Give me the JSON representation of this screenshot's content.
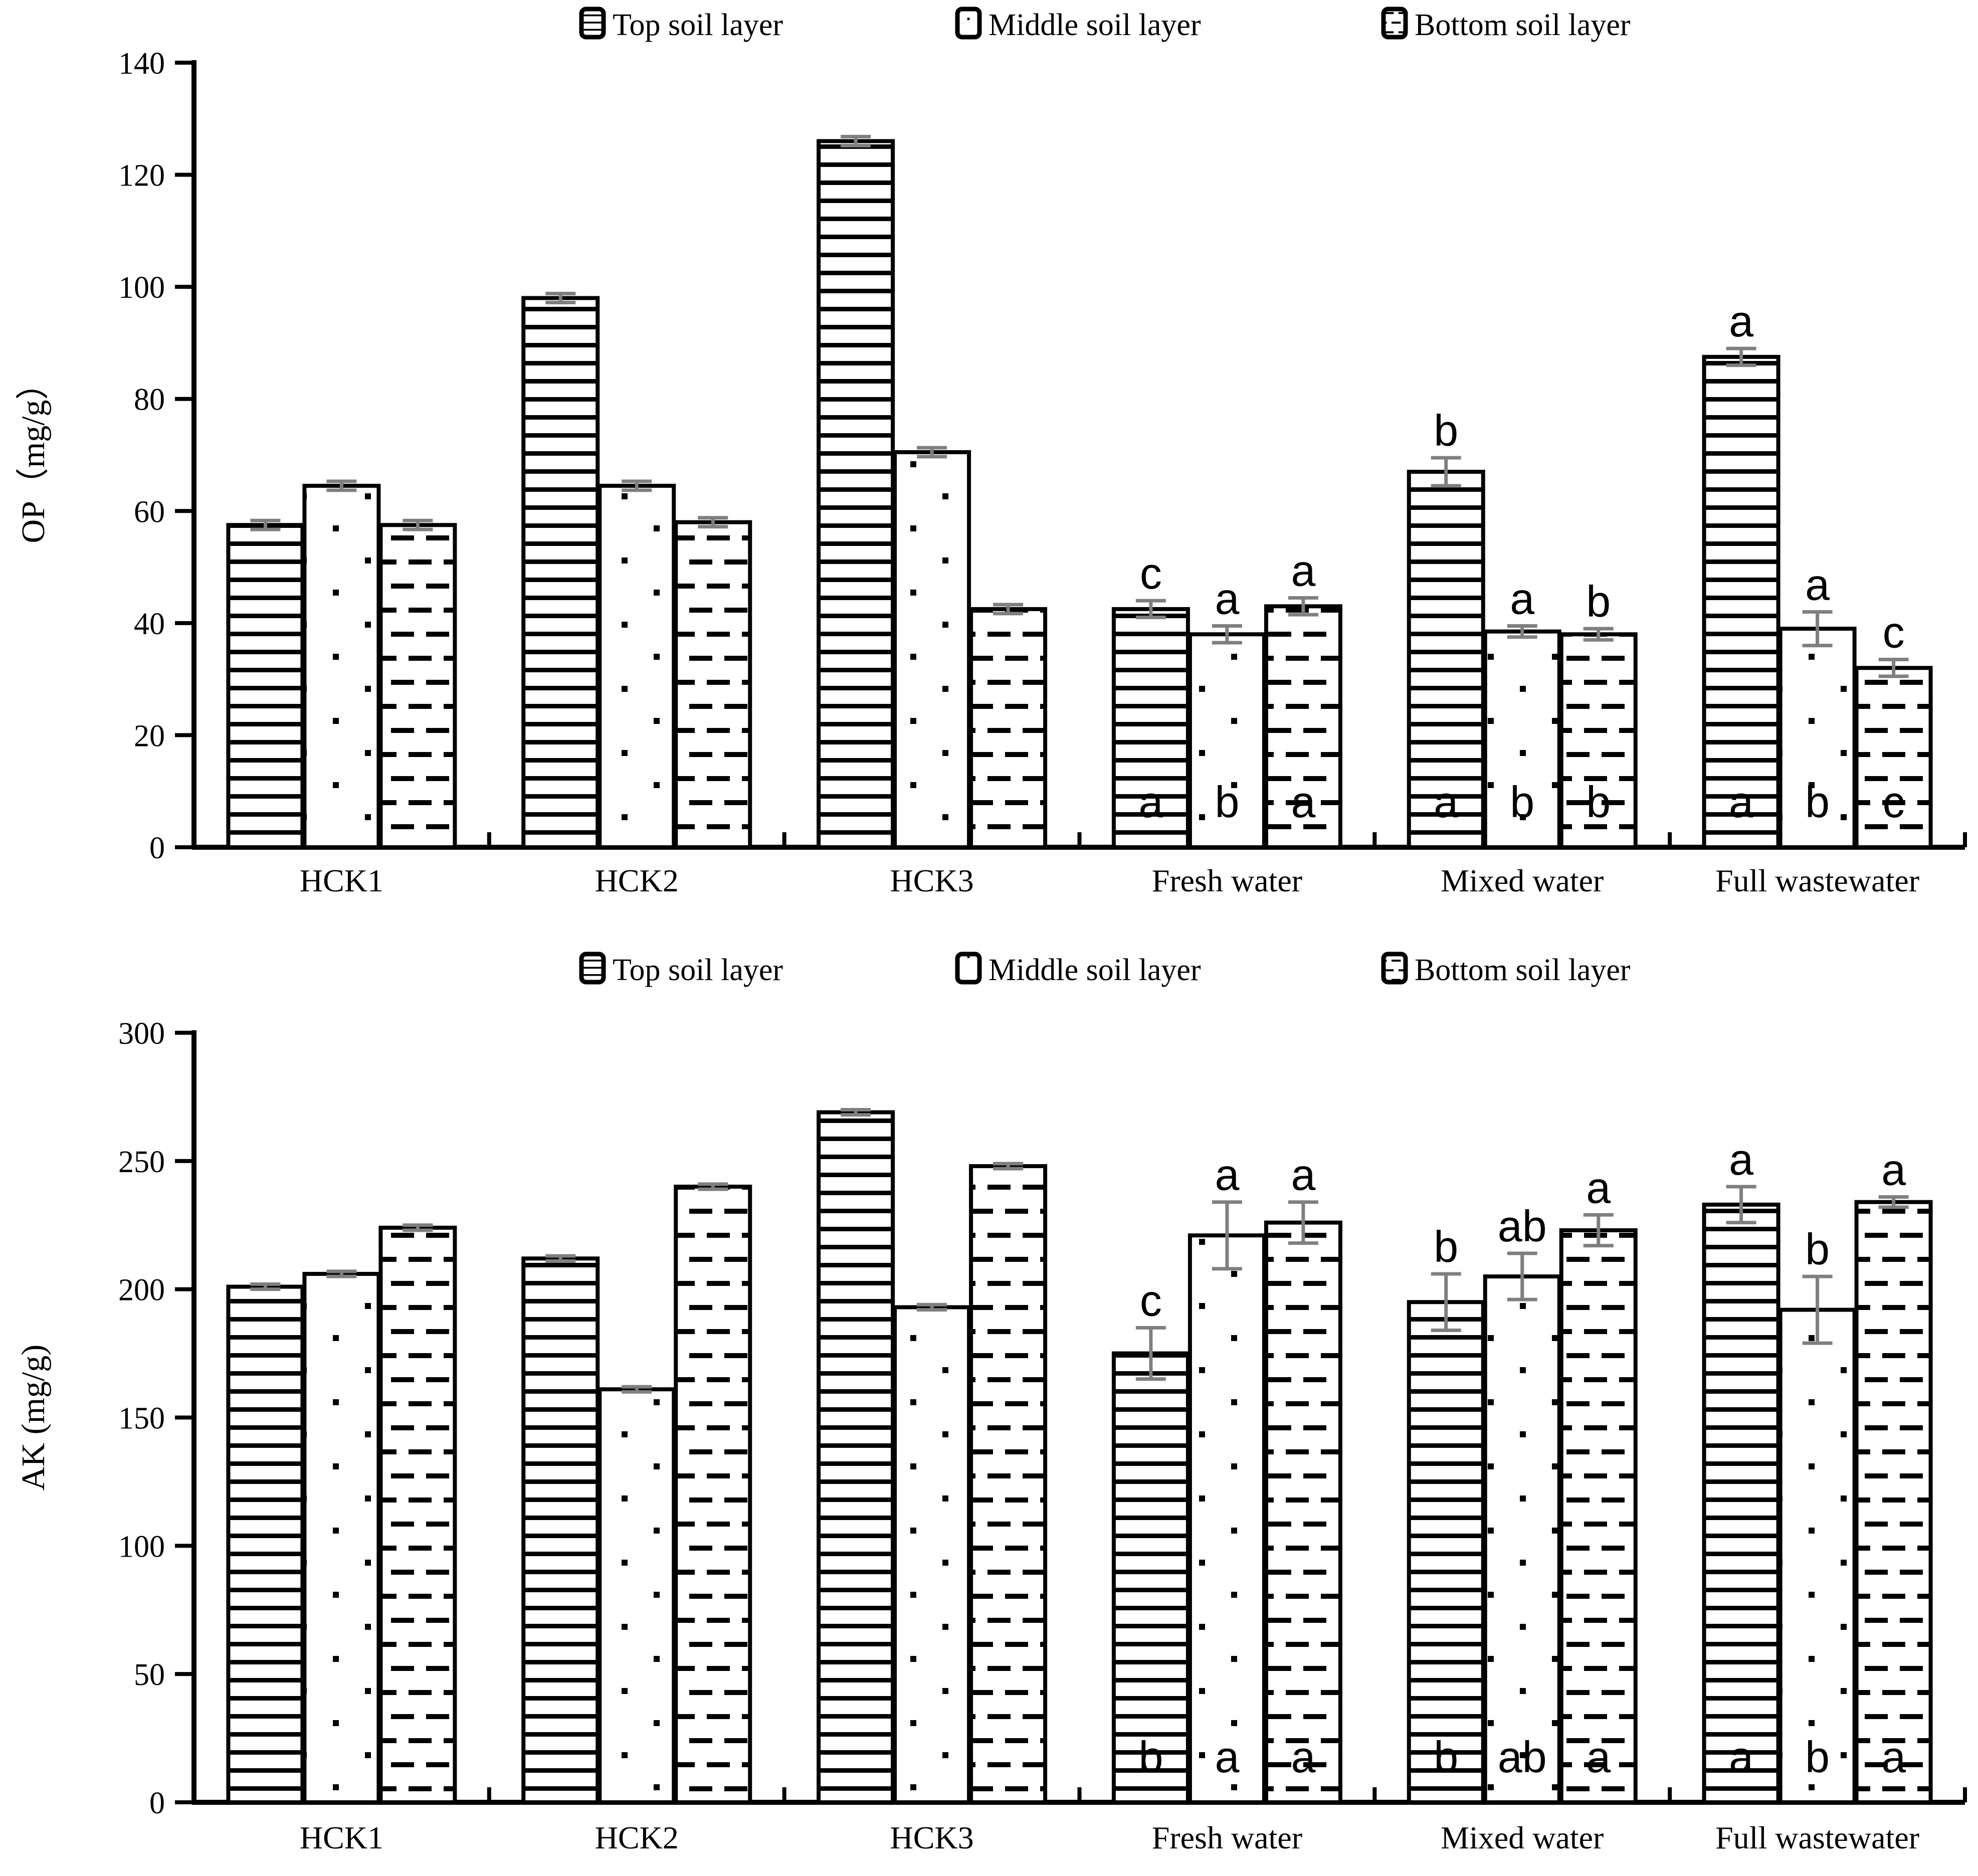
{
  "figure_title": "",
  "colors": {
    "bar_fill": "#ffffff",
    "bar_stroke": "#000000",
    "error_bar": "#7f7f7f",
    "axis": "#000000",
    "text": "#000000"
  },
  "legend": {
    "items": [
      {
        "label": "Top soil layer",
        "pattern": "horizontal-lines"
      },
      {
        "label": "Middle soil layer",
        "pattern": "dots"
      },
      {
        "label": "Bottom soil layer",
        "pattern": "dashes"
      }
    ]
  },
  "chart_data": [
    {
      "type": "bar",
      "title": "",
      "ylabel": "OP（mg/g）",
      "xlabel": "",
      "ylim": [
        0,
        140
      ],
      "ytick_step": 20,
      "yticks": [
        0,
        20,
        40,
        60,
        80,
        100,
        120,
        140
      ],
      "grid": false,
      "legend_position": "top-center",
      "categories": [
        "HCK1",
        "HCK2",
        "HCK3",
        "Fresh water",
        "Mixed water",
        "Full wastewater"
      ],
      "series": [
        {
          "name": "Top soil layer",
          "pattern": "horizontal-lines",
          "values": [
            57.5,
            98,
            126,
            42.5,
            67,
            87.5
          ],
          "errors": [
            0.8,
            0.8,
            0.8,
            1.5,
            2.5,
            1.5
          ],
          "letters_above": [
            "",
            "",
            "",
            "c",
            "b",
            "a"
          ],
          "letters_inside": [
            "",
            "",
            "",
            "a",
            "a",
            "a"
          ]
        },
        {
          "name": "Middle soil layer",
          "pattern": "dots",
          "values": [
            64.5,
            64.5,
            70.5,
            38,
            38.5,
            39
          ],
          "errors": [
            0.8,
            0.8,
            0.8,
            1.5,
            1,
            3
          ],
          "letters_above": [
            "",
            "",
            "",
            "a",
            "a",
            "a"
          ],
          "letters_inside": [
            "",
            "",
            "",
            "b",
            "b",
            "b"
          ]
        },
        {
          "name": "Bottom soil layer",
          "pattern": "dashes",
          "values": [
            57.5,
            58,
            42.5,
            43,
            38,
            32
          ],
          "errors": [
            0.8,
            0.8,
            0.8,
            1.5,
            1,
            1.5
          ],
          "letters_above": [
            "",
            "",
            "",
            "a",
            "b",
            "c"
          ],
          "letters_inside": [
            "",
            "",
            "",
            "a",
            "b",
            "c"
          ]
        }
      ]
    },
    {
      "type": "bar",
      "title": "",
      "ylabel": "AK (mg/g)",
      "xlabel": "",
      "ylim": [
        0,
        300
      ],
      "ytick_step": 50,
      "yticks": [
        0,
        50,
        100,
        150,
        200,
        250,
        300
      ],
      "grid": false,
      "legend_position": "top-center",
      "categories": [
        "HCK1",
        "HCK2",
        "HCK3",
        "Fresh water",
        "Mixed water",
        "Full wastewater"
      ],
      "series": [
        {
          "name": "Top soil layer",
          "pattern": "horizontal-lines",
          "values": [
            201,
            212,
            269,
            175,
            195,
            233
          ],
          "errors": [
            1,
            1,
            1,
            10,
            11,
            7
          ],
          "letters_above": [
            "",
            "",
            "",
            "c",
            "b",
            "a"
          ],
          "letters_inside": [
            "",
            "",
            "",
            "b",
            "b",
            "a"
          ]
        },
        {
          "name": "Middle soil layer",
          "pattern": "dots",
          "values": [
            206,
            161,
            193,
            221,
            205,
            192
          ],
          "errors": [
            1,
            1,
            1,
            13,
            9,
            13
          ],
          "letters_above": [
            "",
            "",
            "",
            "a",
            "ab",
            "b"
          ],
          "letters_inside": [
            "",
            "",
            "",
            "a",
            "ab",
            "b"
          ]
        },
        {
          "name": "Bottom soil layer",
          "pattern": "dashes",
          "values": [
            224,
            240,
            248,
            226,
            223,
            234
          ],
          "errors": [
            1,
            1,
            1,
            8,
            6,
            2
          ],
          "letters_above": [
            "",
            "",
            "",
            "a",
            "a",
            "a"
          ],
          "letters_inside": [
            "",
            "",
            "",
            "a",
            "a",
            "a"
          ]
        }
      ]
    }
  ]
}
